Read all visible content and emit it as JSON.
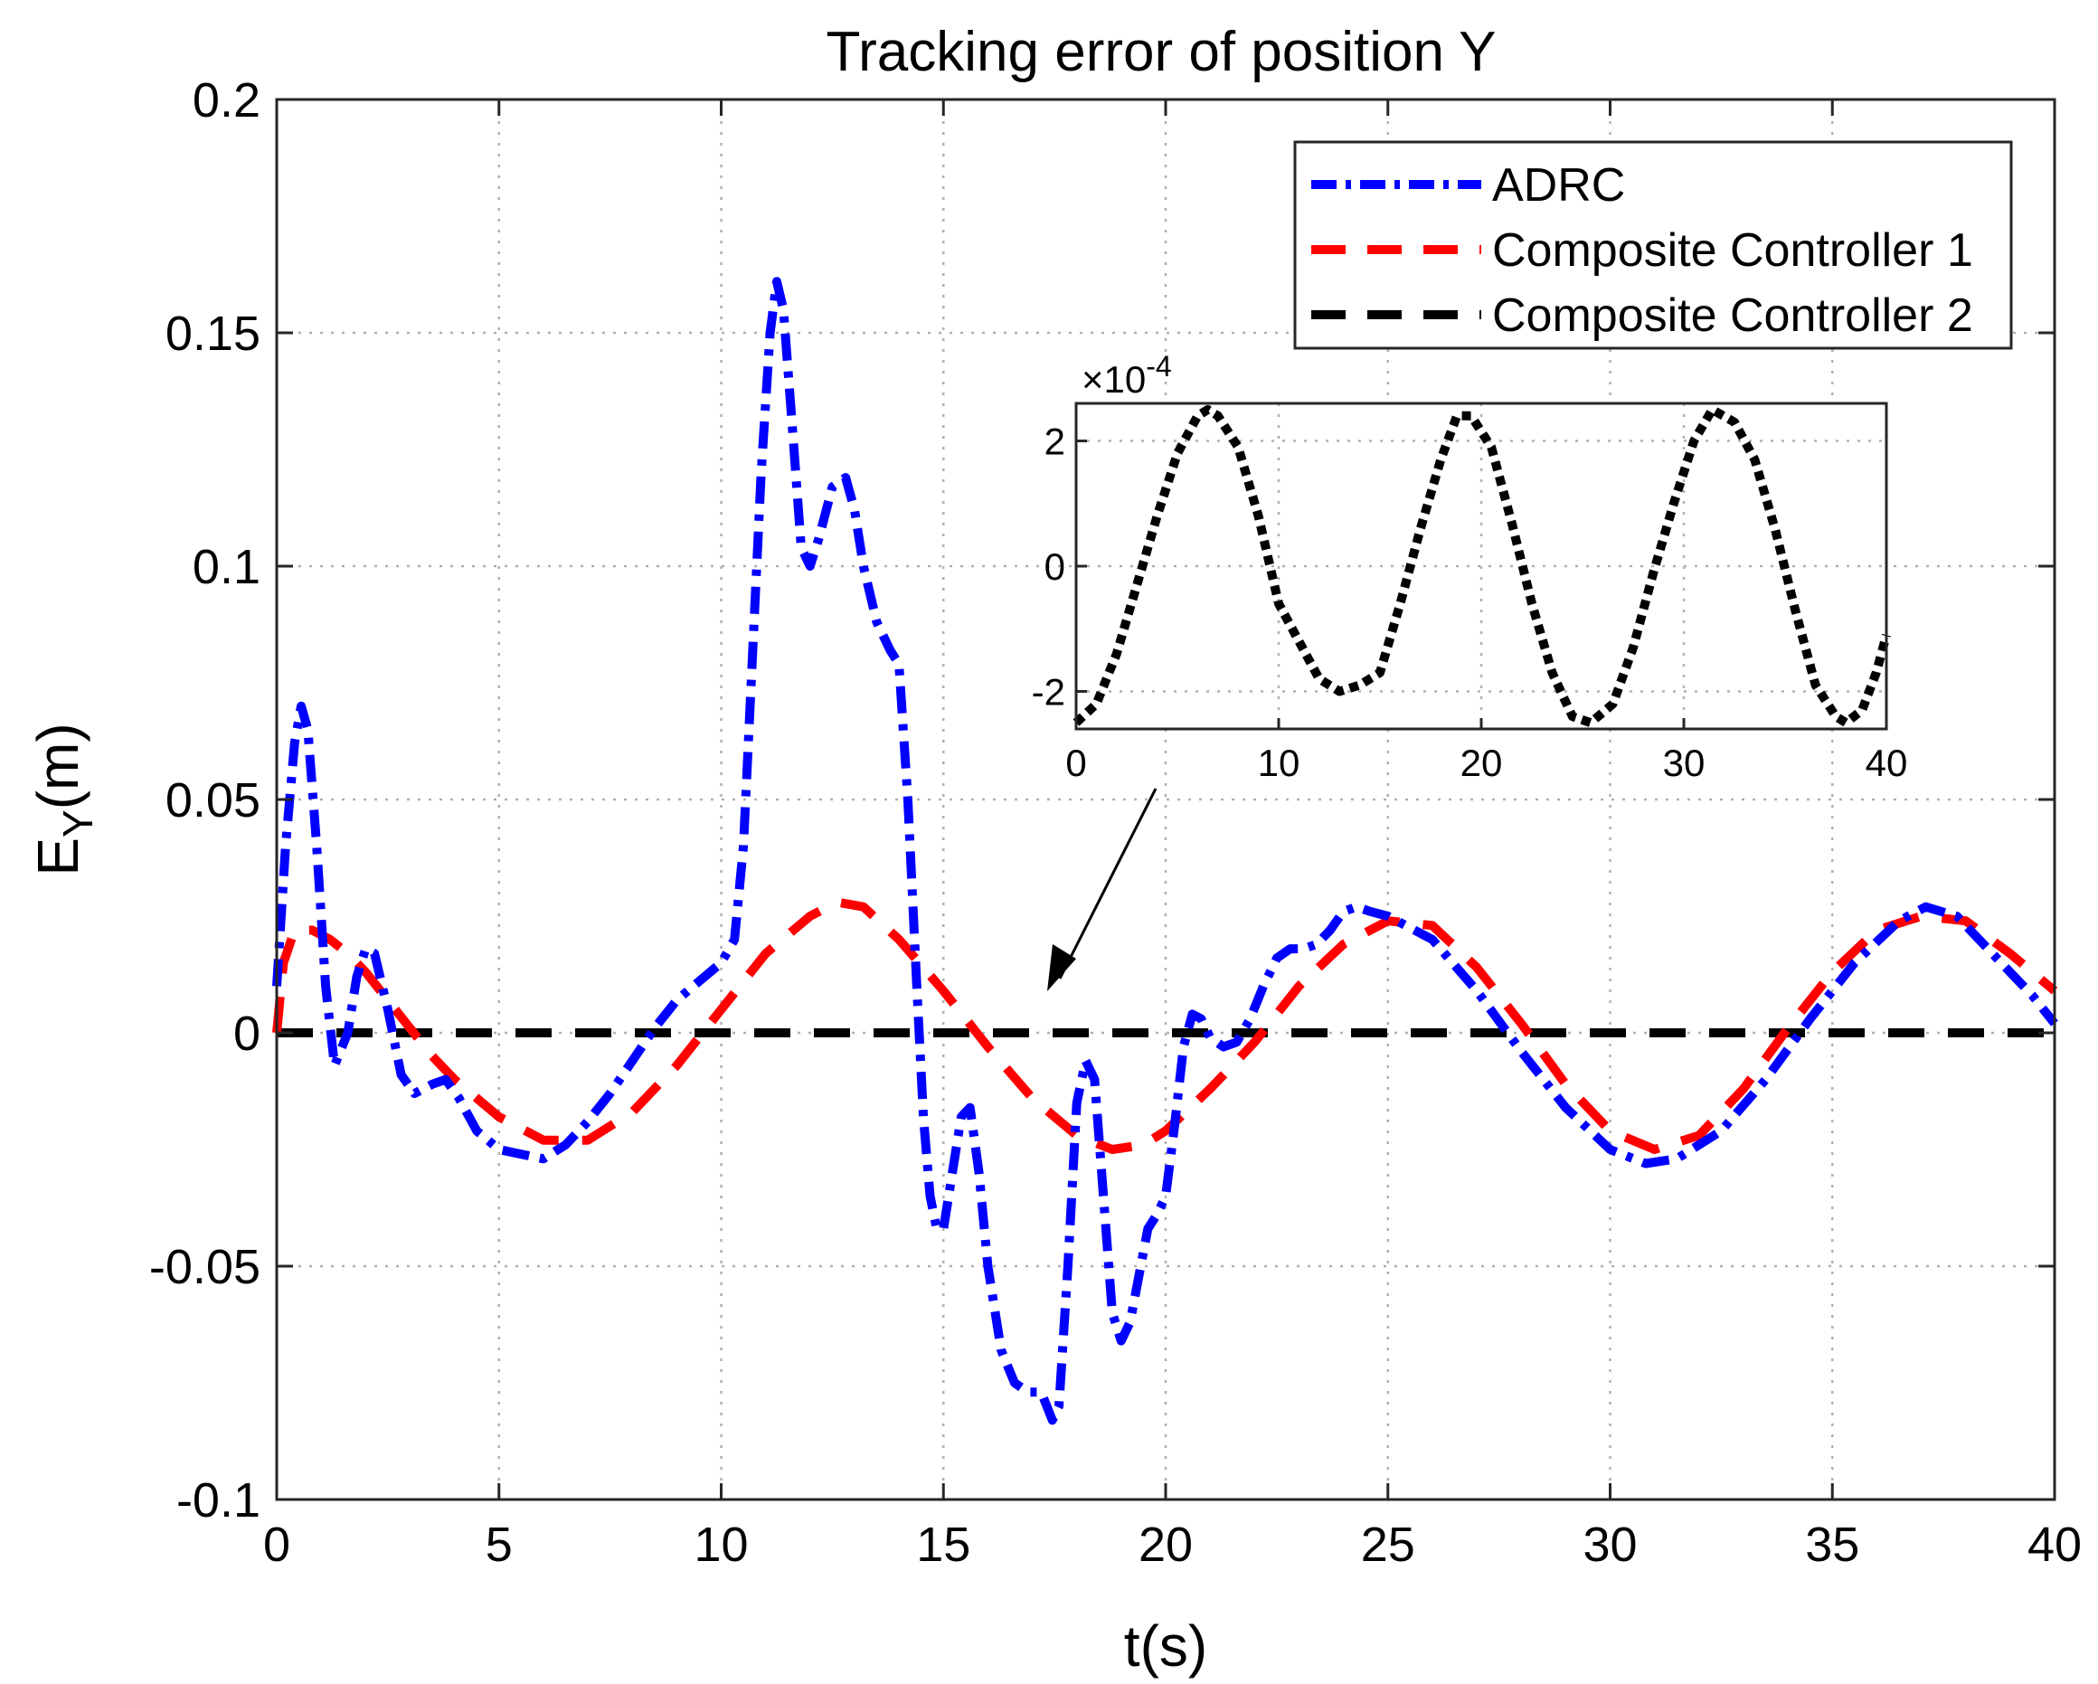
{
  "chart_data": {
    "type": "line",
    "title": "Tracking error of position Y",
    "xlabel": "t(s)",
    "ylabel": "E_Y(m)",
    "ylabel_main": "E",
    "ylabel_sub": "Y",
    "ylabel_unit": "(m)",
    "xlim": [
      0,
      40
    ],
    "ylim": [
      -0.1,
      0.2
    ],
    "xticks": [
      0,
      5,
      10,
      15,
      20,
      25,
      30,
      35,
      40
    ],
    "xtick_labels": [
      "0",
      "5",
      "10",
      "15",
      "20",
      "25",
      "30",
      "35",
      "40"
    ],
    "yticks": [
      -0.1,
      -0.05,
      0,
      0.05,
      0.1,
      0.15,
      0.2
    ],
    "ytick_labels": [
      "-0.1",
      "-0.05",
      "0",
      "0.05",
      "0.1",
      "0.15",
      "0.2"
    ],
    "grid": true,
    "legend_position": "top-right",
    "series": [
      {
        "name": "ADRC",
        "color": "#0000ff",
        "style": "dash-dot",
        "x": [
          0,
          0.2,
          0.4,
          0.55,
          0.7,
          0.9,
          1.1,
          1.3,
          1.6,
          1.8,
          2.0,
          2.2,
          2.5,
          2.8,
          3.1,
          3.5,
          3.8,
          4.1,
          4.5,
          5.0,
          5.5,
          6.0,
          6.5,
          7.0,
          7.5,
          8.0,
          8.5,
          9.0,
          9.5,
          10.0,
          10.3,
          10.5,
          10.7,
          10.9,
          11.1,
          11.25,
          11.4,
          11.6,
          11.8,
          12.0,
          12.2,
          12.5,
          12.8,
          13.0,
          13.2,
          13.5,
          13.8,
          14.0,
          14.2,
          14.4,
          14.55,
          14.7,
          14.85,
          15.0,
          15.2,
          15.4,
          15.6,
          15.8,
          16.0,
          16.3,
          16.6,
          16.9,
          17.2,
          17.45,
          17.6,
          17.8,
          18.0,
          18.2,
          18.4,
          18.6,
          18.8,
          19.0,
          19.2,
          19.4,
          19.6,
          19.8,
          20.0,
          20.2,
          20.4,
          20.6,
          20.8,
          21.0,
          21.3,
          21.6,
          21.9,
          22.2,
          22.5,
          22.8,
          23.1,
          23.4,
          23.7,
          24.0,
          24.3,
          24.6,
          25.0,
          26.0,
          27.0,
          28.0,
          29.0,
          30.0,
          30.8,
          31.5,
          32.5,
          33.5,
          34.5,
          35.5,
          36.5,
          37.1,
          37.8,
          38.5,
          39.0,
          39.5,
          40.0
        ],
        "y": [
          0.01,
          0.04,
          0.062,
          0.07,
          0.065,
          0.04,
          0.01,
          -0.007,
          0.0,
          0.012,
          0.018,
          0.017,
          0.005,
          -0.009,
          -0.013,
          -0.011,
          -0.01,
          -0.014,
          -0.021,
          -0.025,
          -0.026,
          -0.027,
          -0.024,
          -0.019,
          -0.013,
          -0.006,
          0.001,
          0.007,
          0.011,
          0.015,
          0.02,
          0.04,
          0.08,
          0.12,
          0.15,
          0.161,
          0.155,
          0.13,
          0.104,
          0.1,
          0.106,
          0.117,
          0.119,
          0.112,
          0.1,
          0.088,
          0.082,
          0.079,
          0.05,
          0.01,
          -0.018,
          -0.035,
          -0.042,
          -0.042,
          -0.03,
          -0.018,
          -0.016,
          -0.03,
          -0.05,
          -0.068,
          -0.075,
          -0.077,
          -0.077,
          -0.083,
          -0.08,
          -0.05,
          -0.015,
          -0.006,
          -0.01,
          -0.035,
          -0.06,
          -0.066,
          -0.062,
          -0.052,
          -0.042,
          -0.039,
          -0.035,
          -0.02,
          -0.003,
          0.004,
          0.003,
          -0.001,
          -0.003,
          -0.002,
          0.003,
          0.01,
          0.016,
          0.018,
          0.018,
          0.019,
          0.022,
          0.026,
          0.027,
          0.026,
          0.025,
          0.02,
          0.009,
          -0.004,
          -0.016,
          -0.025,
          -0.028,
          -0.027,
          -0.021,
          -0.01,
          0.003,
          0.015,
          0.024,
          0.027,
          0.025,
          0.018,
          0.013,
          0.008,
          0.002
        ]
      },
      {
        "name": "Composite Controller 1",
        "color": "#ff0000",
        "style": "dashed",
        "x": [
          0,
          0.15,
          0.4,
          0.8,
          1.2,
          1.6,
          2.0,
          2.5,
          3.0,
          3.5,
          4.0,
          5.0,
          6.0,
          7.0,
          8.0,
          9.0,
          10.0,
          11.0,
          12.0,
          12.6,
          13.2,
          14.0,
          15.0,
          16.0,
          17.0,
          18.0,
          18.8,
          19.5,
          20.0,
          21.0,
          22.0,
          23.0,
          24.0,
          25.0,
          26.0,
          27.0,
          28.0,
          29.0,
          30.0,
          31.0,
          32.0,
          33.0,
          34.0,
          35.0,
          36.0,
          37.0,
          38.0,
          39.0,
          40.0
        ],
        "y": [
          0,
          0.015,
          0.022,
          0.022,
          0.02,
          0.017,
          0.013,
          0.007,
          0.001,
          -0.005,
          -0.01,
          -0.018,
          -0.023,
          -0.023,
          -0.017,
          -0.007,
          0.005,
          0.017,
          0.025,
          0.028,
          0.027,
          0.02,
          0.009,
          -0.003,
          -0.014,
          -0.022,
          -0.025,
          -0.024,
          -0.021,
          -0.012,
          -0.002,
          0.01,
          0.019,
          0.024,
          0.023,
          0.014,
          0.002,
          -0.011,
          -0.021,
          -0.025,
          -0.022,
          -0.012,
          0.001,
          0.013,
          0.022,
          0.025,
          0.024,
          0.017,
          0.009
        ]
      },
      {
        "name": "Composite Controller 2",
        "color": "#000000",
        "style": "dashed",
        "x": [
          0,
          40
        ],
        "y": [
          0,
          0
        ]
      }
    ],
    "inset": {
      "multiplier_label": "×10",
      "multiplier_exponent": "-4",
      "xlim": [
        0,
        40
      ],
      "ylim": [
        -2.6,
        2.6
      ],
      "xticks": [
        0,
        10,
        20,
        30,
        40
      ],
      "xtick_labels": [
        "0",
        "10",
        "20",
        "30",
        "40"
      ],
      "yticks": [
        -2,
        0,
        2
      ],
      "ytick_labels": [
        "-2",
        "0",
        "2"
      ],
      "series": {
        "name": "Composite Controller 2",
        "color": "#000000",
        "style": "dotted",
        "x": [
          0,
          1,
          2,
          3,
          4,
          5,
          6,
          6.5,
          7,
          8,
          9,
          10,
          11,
          12,
          13,
          14,
          15,
          16,
          17,
          18,
          18.8,
          19.5,
          20.5,
          21.5,
          22.5,
          23.5,
          24.5,
          25.4,
          26.5,
          27.5,
          28.5,
          29.5,
          30.5,
          31.4,
          32.5,
          33.5,
          34.5,
          35.5,
          36.5,
          37.5,
          38.0,
          38.8,
          39.5,
          40.0
        ],
        "y": [
          -2.5,
          -2.2,
          -1.4,
          -0.3,
          0.8,
          1.8,
          2.4,
          2.5,
          2.4,
          1.9,
          0.8,
          -0.6,
          -1.2,
          -1.8,
          -2.0,
          -1.9,
          -1.7,
          -0.6,
          0.6,
          1.7,
          2.4,
          2.4,
          1.9,
          0.7,
          -0.6,
          -1.7,
          -2.4,
          -2.5,
          -2.2,
          -1.3,
          -0.1,
          1.0,
          2.0,
          2.5,
          2.3,
          1.7,
          0.6,
          -0.7,
          -1.9,
          -2.4,
          -2.5,
          -2.3,
          -1.7,
          -1.1
        ]
      }
    }
  }
}
